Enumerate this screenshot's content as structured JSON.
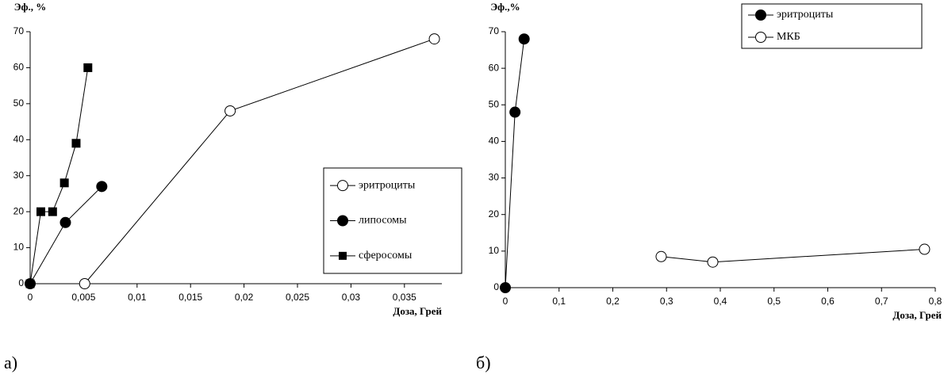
{
  "chart_data": [
    {
      "type": "line",
      "caption": "а)",
      "ylabel": "Эф., %",
      "xlabel": "Доза, Грей",
      "xlim": [
        0,
        0.0385
      ],
      "ylim": [
        0,
        70
      ],
      "xticks": [
        0,
        {
          "value": 0.005,
          "label": "0,005"
        },
        {
          "value": 0.01,
          "label": "0,01"
        },
        {
          "value": 0.015,
          "label": "0,015"
        },
        {
          "value": 0.02,
          "label": "0,02"
        },
        {
          "value": 0.025,
          "label": "0,025"
        },
        {
          "value": 0.03,
          "label": "0,03"
        },
        {
          "value": 0.035,
          "label": "0,035"
        }
      ],
      "yticks": [
        0,
        10,
        20,
        30,
        40,
        50,
        60,
        70
      ],
      "legend": "lower right",
      "series": [
        {
          "name": "эритроциты",
          "color": "#000000",
          "marker": "circle-open",
          "x": [
            0.0051,
            0.0187,
            0.0378
          ],
          "values": [
            0,
            48,
            68
          ]
        },
        {
          "name": "липосомы",
          "color": "#000000",
          "marker": "circle",
          "x": [
            0,
            0.0033,
            0.0067
          ],
          "values": [
            0,
            17,
            27
          ]
        },
        {
          "name": "сферосомы",
          "color": "#000000",
          "marker": "square",
          "x": [
            0,
            0.001,
            0.0021,
            0.0032,
            0.0043,
            0.0054
          ],
          "values": [
            0,
            20,
            20,
            28,
            39,
            60
          ]
        }
      ]
    },
    {
      "type": "line",
      "caption": "б)",
      "ylabel": "Эф.,%",
      "xlabel": "Доза, Грей",
      "xlim": [
        0,
        0.8
      ],
      "ylim": [
        0,
        70
      ],
      "xticks": [
        0,
        {
          "value": 0.1,
          "label": "0,1"
        },
        {
          "value": 0.2,
          "label": "0,2"
        },
        {
          "value": 0.3,
          "label": "0,3"
        },
        {
          "value": 0.4,
          "label": "0,4"
        },
        {
          "value": 0.5,
          "label": "0,5"
        },
        {
          "value": 0.6,
          "label": "0,6"
        },
        {
          "value": 0.7,
          "label": "0,7"
        },
        {
          "value": 0.8,
          "label": "0,8"
        }
      ],
      "yticks": [
        0,
        10,
        20,
        30,
        40,
        50,
        60,
        70
      ],
      "legend": "upper right",
      "series": [
        {
          "name": "эритроциты",
          "color": "#000000",
          "marker": "circle",
          "x": [
            0,
            0.018,
            0.035
          ],
          "values": [
            0,
            48,
            68
          ]
        },
        {
          "name": "МКБ",
          "color": "#000000",
          "marker": "circle-open",
          "x": [
            0.29,
            0.386,
            0.78
          ],
          "values": [
            8.5,
            7,
            10.5
          ]
        }
      ]
    }
  ]
}
